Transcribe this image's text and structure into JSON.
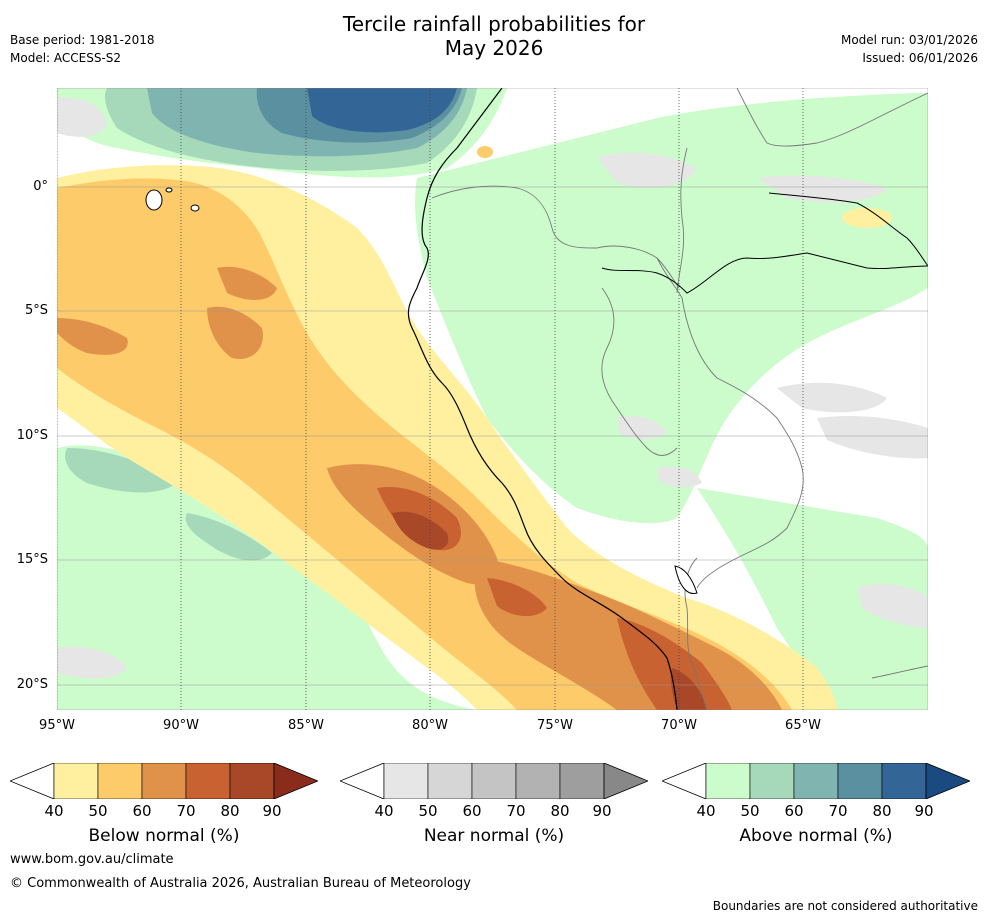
{
  "header": {
    "title_line1": "Tercile rainfall probabilities for",
    "title_line2": "May 2026",
    "base_period": "Base period: 1981-2018",
    "model": "Model: ACCESS-S2",
    "model_run": "Model run: 03/01/2026",
    "issued": "Issued: 06/01/2026"
  },
  "map": {
    "lat_labels": [
      "0°",
      "5°S",
      "10°S",
      "15°S",
      "20°S"
    ],
    "lon_labels": [
      "95°W",
      "90°W",
      "85°W",
      "80°W",
      "75°W",
      "70°W",
      "65°W"
    ]
  },
  "colorbars": [
    {
      "name": "below",
      "label": "Below normal (%)",
      "ticks": [
        "40",
        "50",
        "60",
        "70",
        "80",
        "90"
      ],
      "colors": [
        "#fff0a0",
        "#fecb6a",
        "#e0924a",
        "#c86230",
        "#a84828",
        "#8a2c1c"
      ]
    },
    {
      "name": "near",
      "label": "Near normal (%)",
      "ticks": [
        "40",
        "50",
        "60",
        "70",
        "80",
        "90"
      ],
      "colors": [
        "#e6e6e6",
        "#d6d6d6",
        "#c4c4c4",
        "#b2b2b2",
        "#9e9e9e",
        "#888888"
      ]
    },
    {
      "name": "above",
      "label": "Above normal (%)",
      "ticks": [
        "40",
        "50",
        "60",
        "70",
        "80",
        "90"
      ],
      "colors": [
        "#ccfccc",
        "#a6d8ba",
        "#80b4b0",
        "#5a90a0",
        "#336696",
        "#1a4a80"
      ]
    }
  ],
  "footer": {
    "website": "www.bom.gov.au/climate",
    "copyright": "© Commonwealth of Australia 2026, Australian Bureau of Meteorology",
    "disclaimer": "Boundaries are not considered authoritative"
  }
}
